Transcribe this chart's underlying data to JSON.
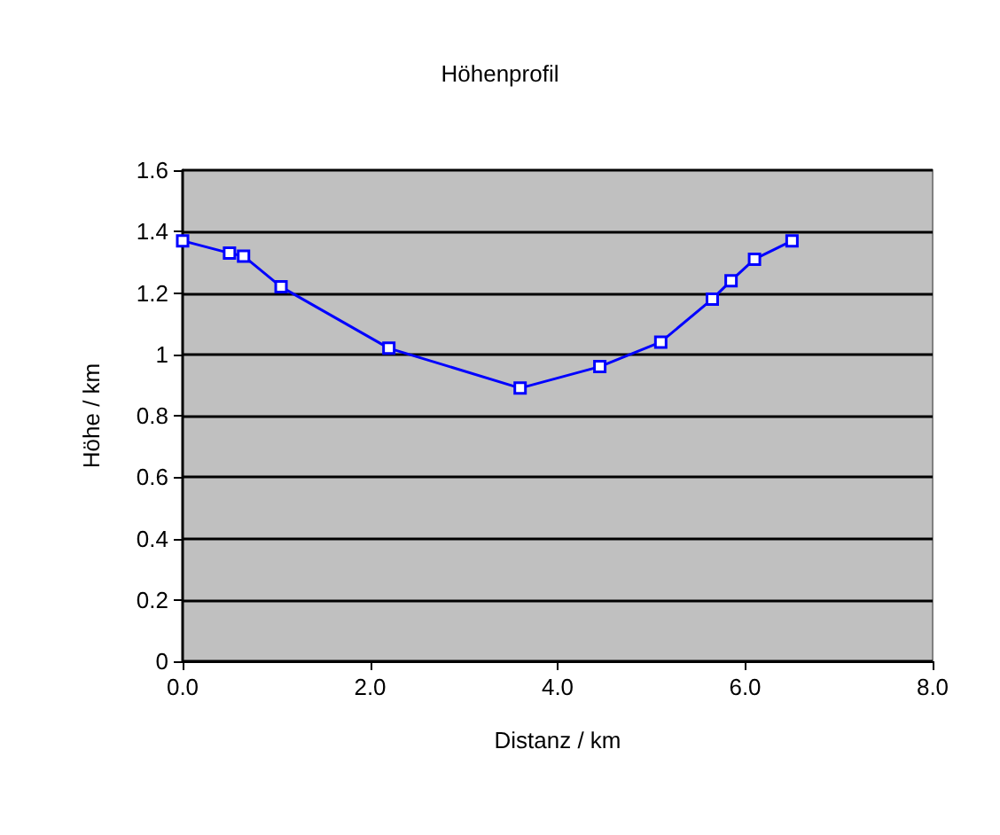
{
  "chart_data": {
    "type": "line",
    "title": "Höhenprofil",
    "xlabel": "Distanz / km",
    "ylabel": "Höhe / km",
    "series": [
      {
        "color": "#0000ff",
        "x": [
          0,
          0.5,
          0.65,
          1.05,
          2.2,
          3.6,
          4.45,
          5.1,
          5.65,
          5.85,
          6.1,
          6.5
        ],
        "values": [
          1.37,
          1.33,
          1.32,
          1.22,
          1.02,
          0.89,
          0.96,
          1.04,
          1.18,
          1.24,
          1.31,
          1.37
        ]
      }
    ],
    "xlim": [
      0,
      8
    ],
    "xticks": [
      {
        "value": 0,
        "label": "0.0"
      },
      {
        "value": 2,
        "label": "2.0"
      },
      {
        "value": 4,
        "label": "4.0"
      },
      {
        "value": 6,
        "label": "6.0"
      },
      {
        "value": 8,
        "label": "8.0"
      }
    ],
    "ylim": [
      0,
      1.6
    ],
    "yticks": [
      0,
      0.2,
      0.4,
      0.6,
      0.8,
      1,
      1.2,
      1.4,
      1.6
    ],
    "grid": "y",
    "marker": "square",
    "line_style": "solid"
  }
}
